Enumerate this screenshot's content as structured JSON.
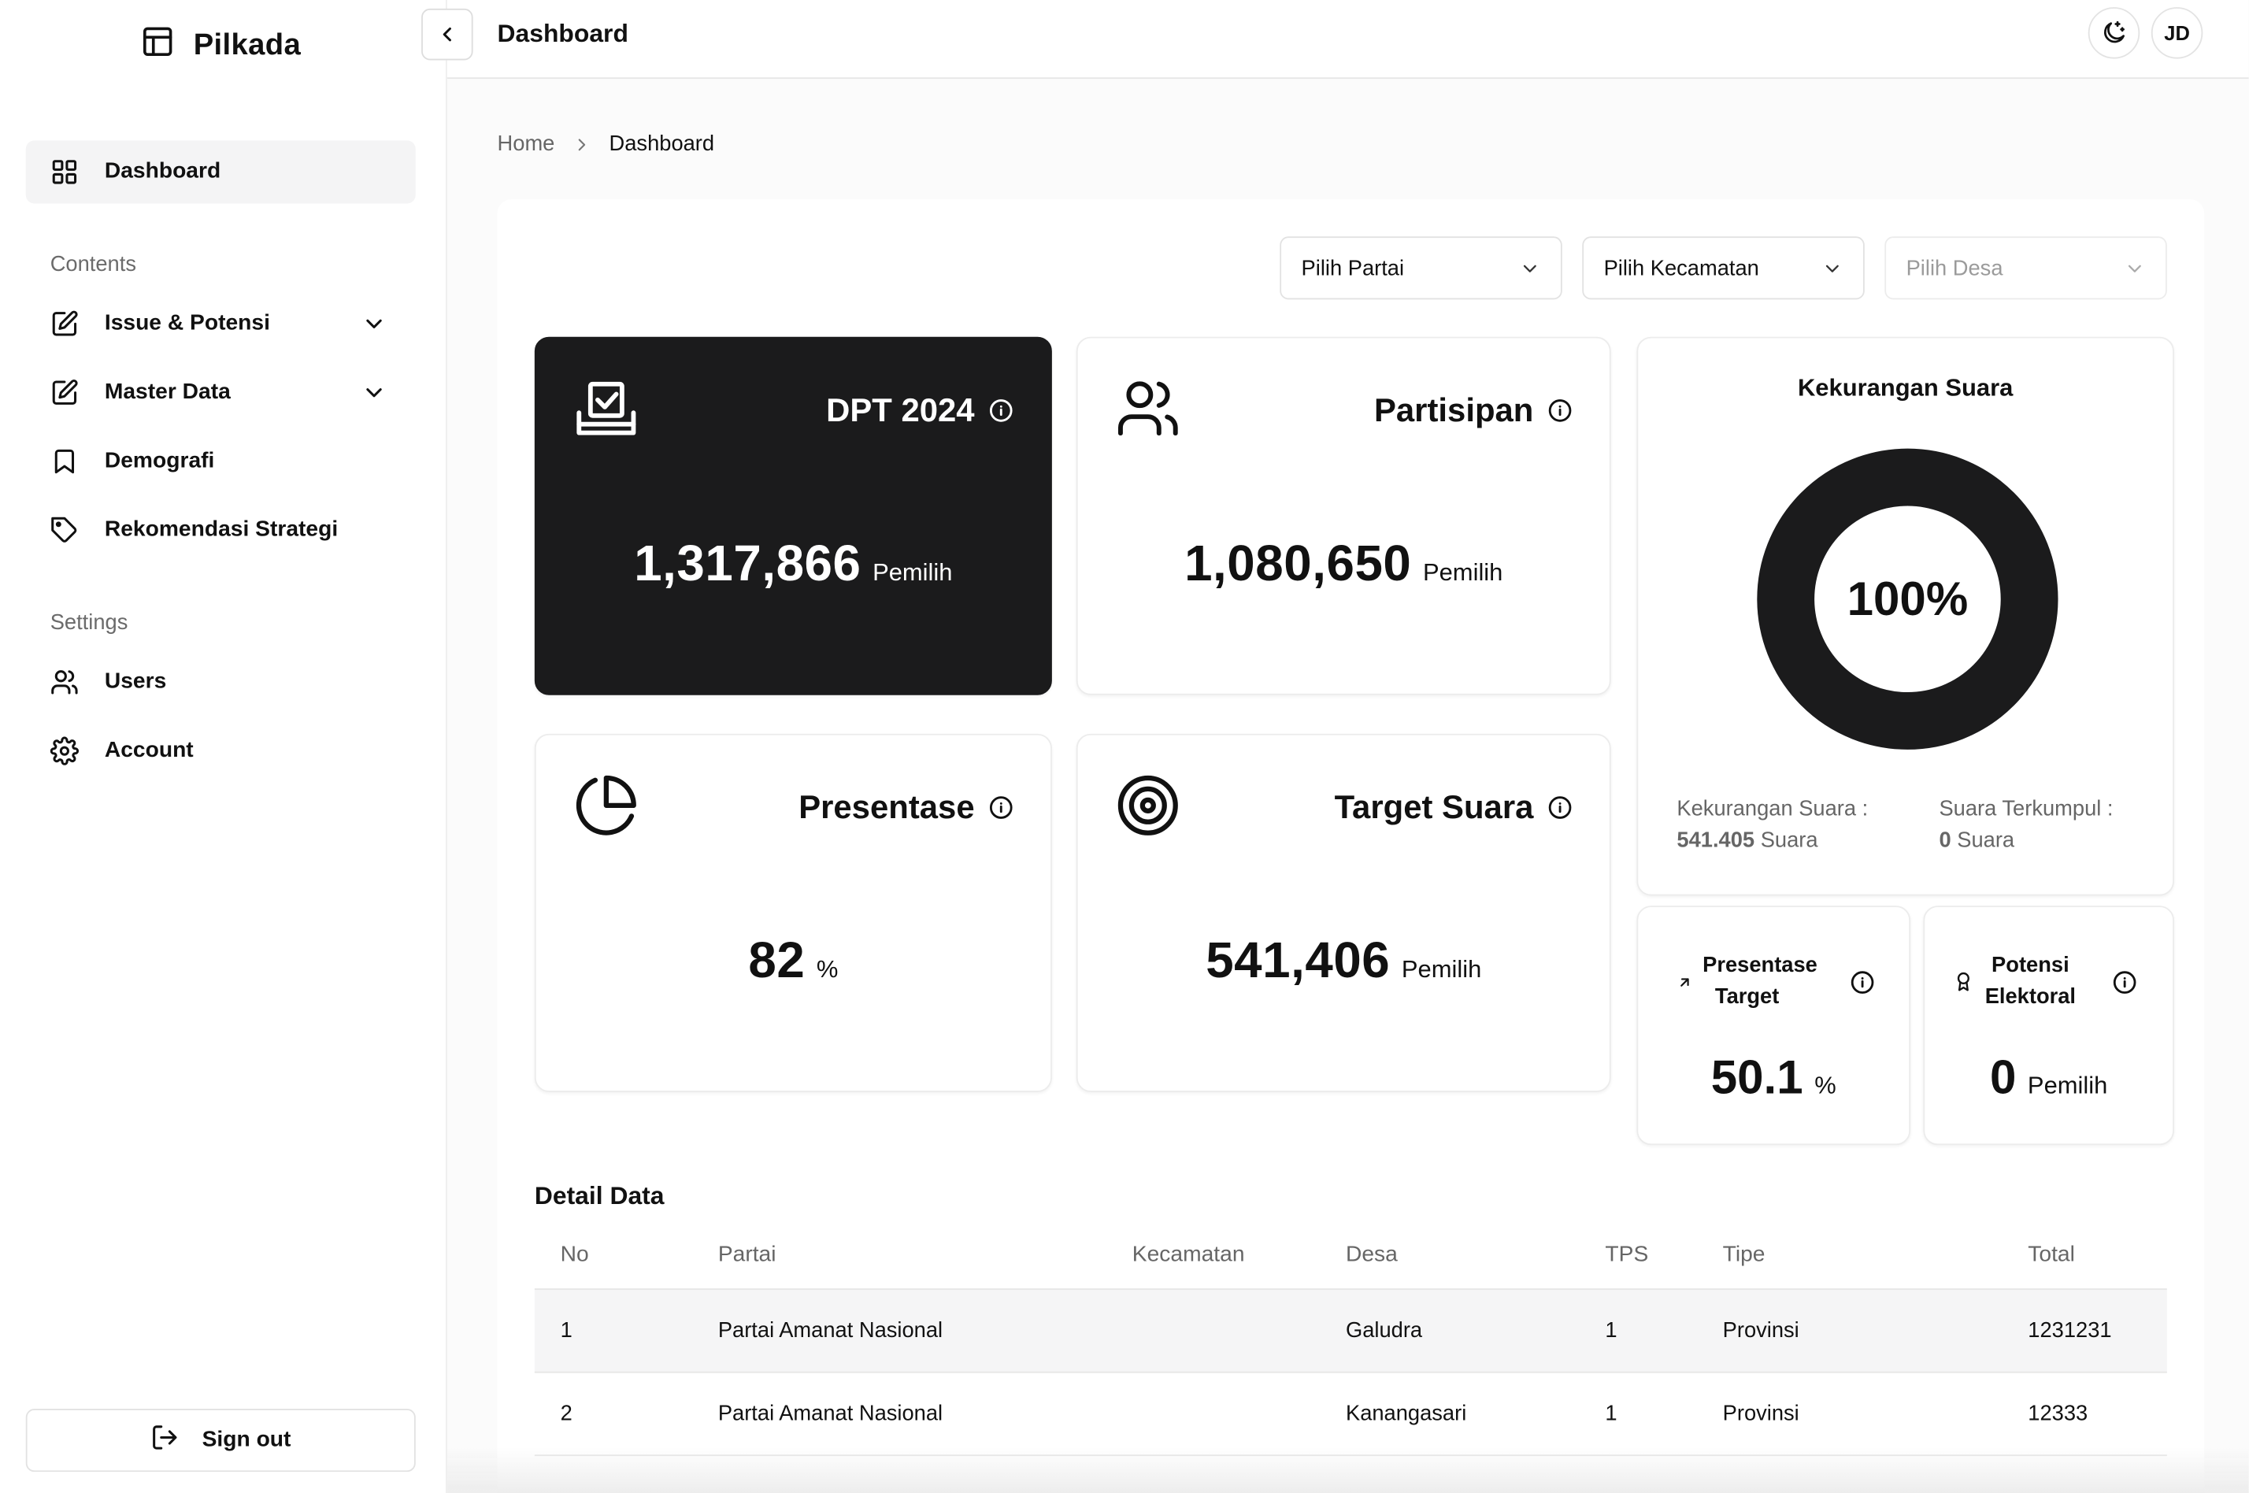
{
  "app": {
    "name": "Pilkada"
  },
  "sidebar": {
    "items": [
      {
        "label": "Dashboard",
        "icon": "grid-icon"
      },
      {
        "label": "Issue & Potensi",
        "icon": "edit-icon"
      },
      {
        "label": "Master Data",
        "icon": "edit-icon"
      },
      {
        "label": "Demografi",
        "icon": "bookmark-icon"
      },
      {
        "label": "Rekomendasi Strategi",
        "icon": "tag-icon"
      },
      {
        "label": "Users",
        "icon": "users-icon"
      },
      {
        "label": "Account",
        "icon": "gear-icon"
      }
    ],
    "sections": {
      "contents": "Contents",
      "settings": "Settings"
    },
    "signout": "Sign out"
  },
  "header": {
    "title": "Dashboard",
    "avatar": "JD"
  },
  "breadcrumb": {
    "home": "Home",
    "current": "Dashboard"
  },
  "filters": [
    {
      "label": "Pilih Partai",
      "enabled": true
    },
    {
      "label": "Pilih Kecamatan",
      "enabled": true
    },
    {
      "label": "Pilih Desa",
      "enabled": false
    }
  ],
  "cards": {
    "dpt": {
      "title": "DPT 2024",
      "value": "1,317,866",
      "unit": "Pemilih"
    },
    "partisipan": {
      "title": "Partisipan",
      "value": "1,080,650",
      "unit": "Pemilih"
    },
    "presentase": {
      "title": "Presentase",
      "value": "82",
      "unit": "%"
    },
    "target": {
      "title": "Target Suara",
      "value": "541,406",
      "unit": "Pemilih"
    },
    "kekurangan": {
      "title": "Kekurangan Suara",
      "percent": "100%",
      "fill": 1.0,
      "left_label": "Kekurangan Suara :",
      "left_value": "541.405",
      "left_unit": "Suara",
      "right_label": "Suara Terkumpul :",
      "right_value": "0",
      "right_unit": "Suara"
    },
    "presentase_target": {
      "title_line1": "Presentase",
      "title_line2": "Target",
      "value": "50.1",
      "unit": "%"
    },
    "potensi": {
      "title_line1": "Potensi",
      "title_line2": "Elektoral",
      "value": "0",
      "unit": "Pemilih"
    }
  },
  "detail": {
    "title": "Detail Data",
    "columns": [
      "No",
      "Partai",
      "Kecamatan",
      "Desa",
      "TPS",
      "Tipe",
      "Total"
    ],
    "rows": [
      [
        "1",
        "Partai Amanat Nasional",
        "",
        "Galudra",
        "1",
        "Provinsi",
        "1231231"
      ],
      [
        "2",
        "Partai Amanat Nasional",
        "",
        "Kanangasari",
        "1",
        "Provinsi",
        "12333"
      ]
    ]
  },
  "colors": {
    "dark": "#1b1b1c",
    "border": "#e6e6e6",
    "muted": "#666666"
  }
}
